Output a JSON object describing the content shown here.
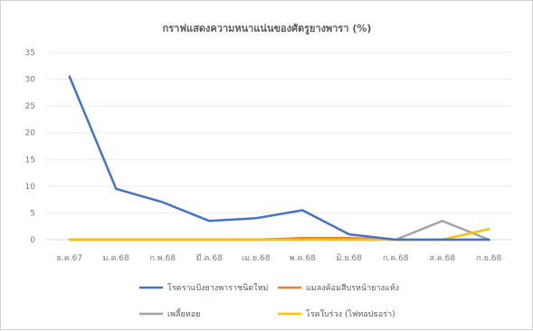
{
  "chart_data": {
    "type": "line",
    "title": "กราฟแสดงความหนาแน่นของศัตรูยางพารา (%)",
    "xlabel": "",
    "ylabel": "",
    "ylim": [
      0,
      35
    ],
    "yticks": [
      0,
      5,
      10,
      15,
      20,
      25,
      30,
      35
    ],
    "categories": [
      "ธ.ค.67",
      "ม.ค.68",
      "ก.พ.68",
      "มี.ค.68",
      "เม.ย.68",
      "พ.ค.68",
      "มิ.ย.68",
      "ก.ค.68",
      "ส.ค.68",
      "ก.ย.68"
    ],
    "grid": true,
    "legend_position": "bottom",
    "series": [
      {
        "name": "โรคราแป้งยางพาราชนิดใหม่",
        "color": "#4472c4",
        "values": [
          30.5,
          9.5,
          7,
          3.5,
          4,
          5.5,
          1,
          0,
          0,
          0
        ]
      },
      {
        "name": "แมลงค้อมสีบรหน้ายางแห้ง",
        "color": "#ed7d31",
        "values": [
          0,
          0,
          0,
          0,
          0,
          0.3,
          0.3,
          0,
          0,
          0
        ]
      },
      {
        "name": "เพลี้ยหอย",
        "color": "#a5a5a5",
        "values": [
          0,
          0,
          0,
          0,
          0,
          0,
          0,
          0,
          3.5,
          0
        ]
      },
      {
        "name": "โรคใบร่วง (ไฟทอปธอร่า)",
        "color": "#ffc000",
        "values": [
          0,
          0,
          0,
          0,
          0,
          0,
          0,
          0,
          0,
          2
        ]
      }
    ]
  }
}
